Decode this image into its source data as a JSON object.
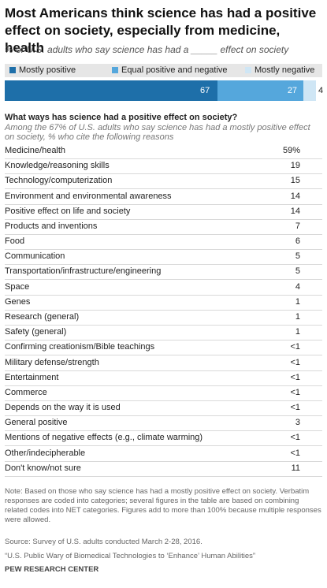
{
  "header": {
    "title": "Most Americans think science has had a positive effect on society, especially from medicine, health",
    "subtitle": "% of U.S. adults who say science has had a _____ effect on society"
  },
  "legend": {
    "items": [
      "Mostly positive",
      "Equal positive and negative",
      "Mostly negative"
    ]
  },
  "colors": {
    "mostly_positive": "#1e6fa9",
    "equal": "#55a7dc",
    "mostly_negative": "#cfe6f5",
    "legend_bg": "#e6e6e6"
  },
  "bar_labels": [
    "67",
    "27",
    "4"
  ],
  "question": {
    "title": "What ways has science had a positive effect on society?",
    "subtitle": "Among the 67% of U.S. adults who say science has had a mostly positive effect on society, % who cite the following reasons"
  },
  "rows": [
    {
      "label": "Medicine/health",
      "value": "59%"
    },
    {
      "label": "Knowledge/reasoning skills",
      "value": "19"
    },
    {
      "label": "Technology/computerization",
      "value": "15"
    },
    {
      "label": "Environment and environmental awareness",
      "value": "14"
    },
    {
      "label": "Positive effect on life and society",
      "value": "14"
    },
    {
      "label": "Products and inventions",
      "value": "7"
    },
    {
      "label": "Food",
      "value": "6"
    },
    {
      "label": "Communication",
      "value": "5"
    },
    {
      "label": "Transportation/infrastructure/engineering",
      "value": "5"
    },
    {
      "label": "Space",
      "value": "4"
    },
    {
      "label": "Genes",
      "value": "1"
    },
    {
      "label": "Research (general)",
      "value": "1"
    },
    {
      "label": "Safety (general)",
      "value": "1"
    },
    {
      "label": "Confirming creationism/Bible teachings",
      "value": "<1"
    },
    {
      "label": "Military defense/strength",
      "value": "<1"
    },
    {
      "label": "Entertainment",
      "value": "<1"
    },
    {
      "label": "Commerce",
      "value": "<1"
    },
    {
      "label": "Depends on the way it is used",
      "value": "<1"
    },
    {
      "label": "General positive",
      "value": "3"
    },
    {
      "label": "Mentions of negative effects (e.g., climate warming)",
      "value": "<1"
    },
    {
      "label": "Other/indecipherable",
      "value": "<1"
    },
    {
      "label": "Don't know/not sure",
      "value": "11"
    }
  ],
  "footer": {
    "note": "Note: Based on those who say science has had a mostly positive effect on society. Verbatim responses are coded into categories; several figures in the table are based on combining related codes into NET categories. Figures add to more than 100% because multiple responses were allowed.",
    "source": "Source: Survey of U.S. adults conducted March 2-28, 2016.",
    "report": "“U.S. Public Wary of Biomedical Technologies to ‘Enhance’ Human Abilities”",
    "org": "PEW RESEARCH CENTER"
  },
  "chart_data": {
    "type": "bar",
    "orientation": "horizontal-stacked",
    "categories": [
      "Mostly positive",
      "Equal positive and negative",
      "Mostly negative"
    ],
    "values": [
      67,
      27,
      4
    ],
    "title": "Most Americans think science has had a positive effect on society, especially from medicine, health",
    "subtitle": "% of U.S. adults who say science has had a _____ effect on society",
    "legend_position": "top",
    "xlim": [
      0,
      100
    ]
  }
}
